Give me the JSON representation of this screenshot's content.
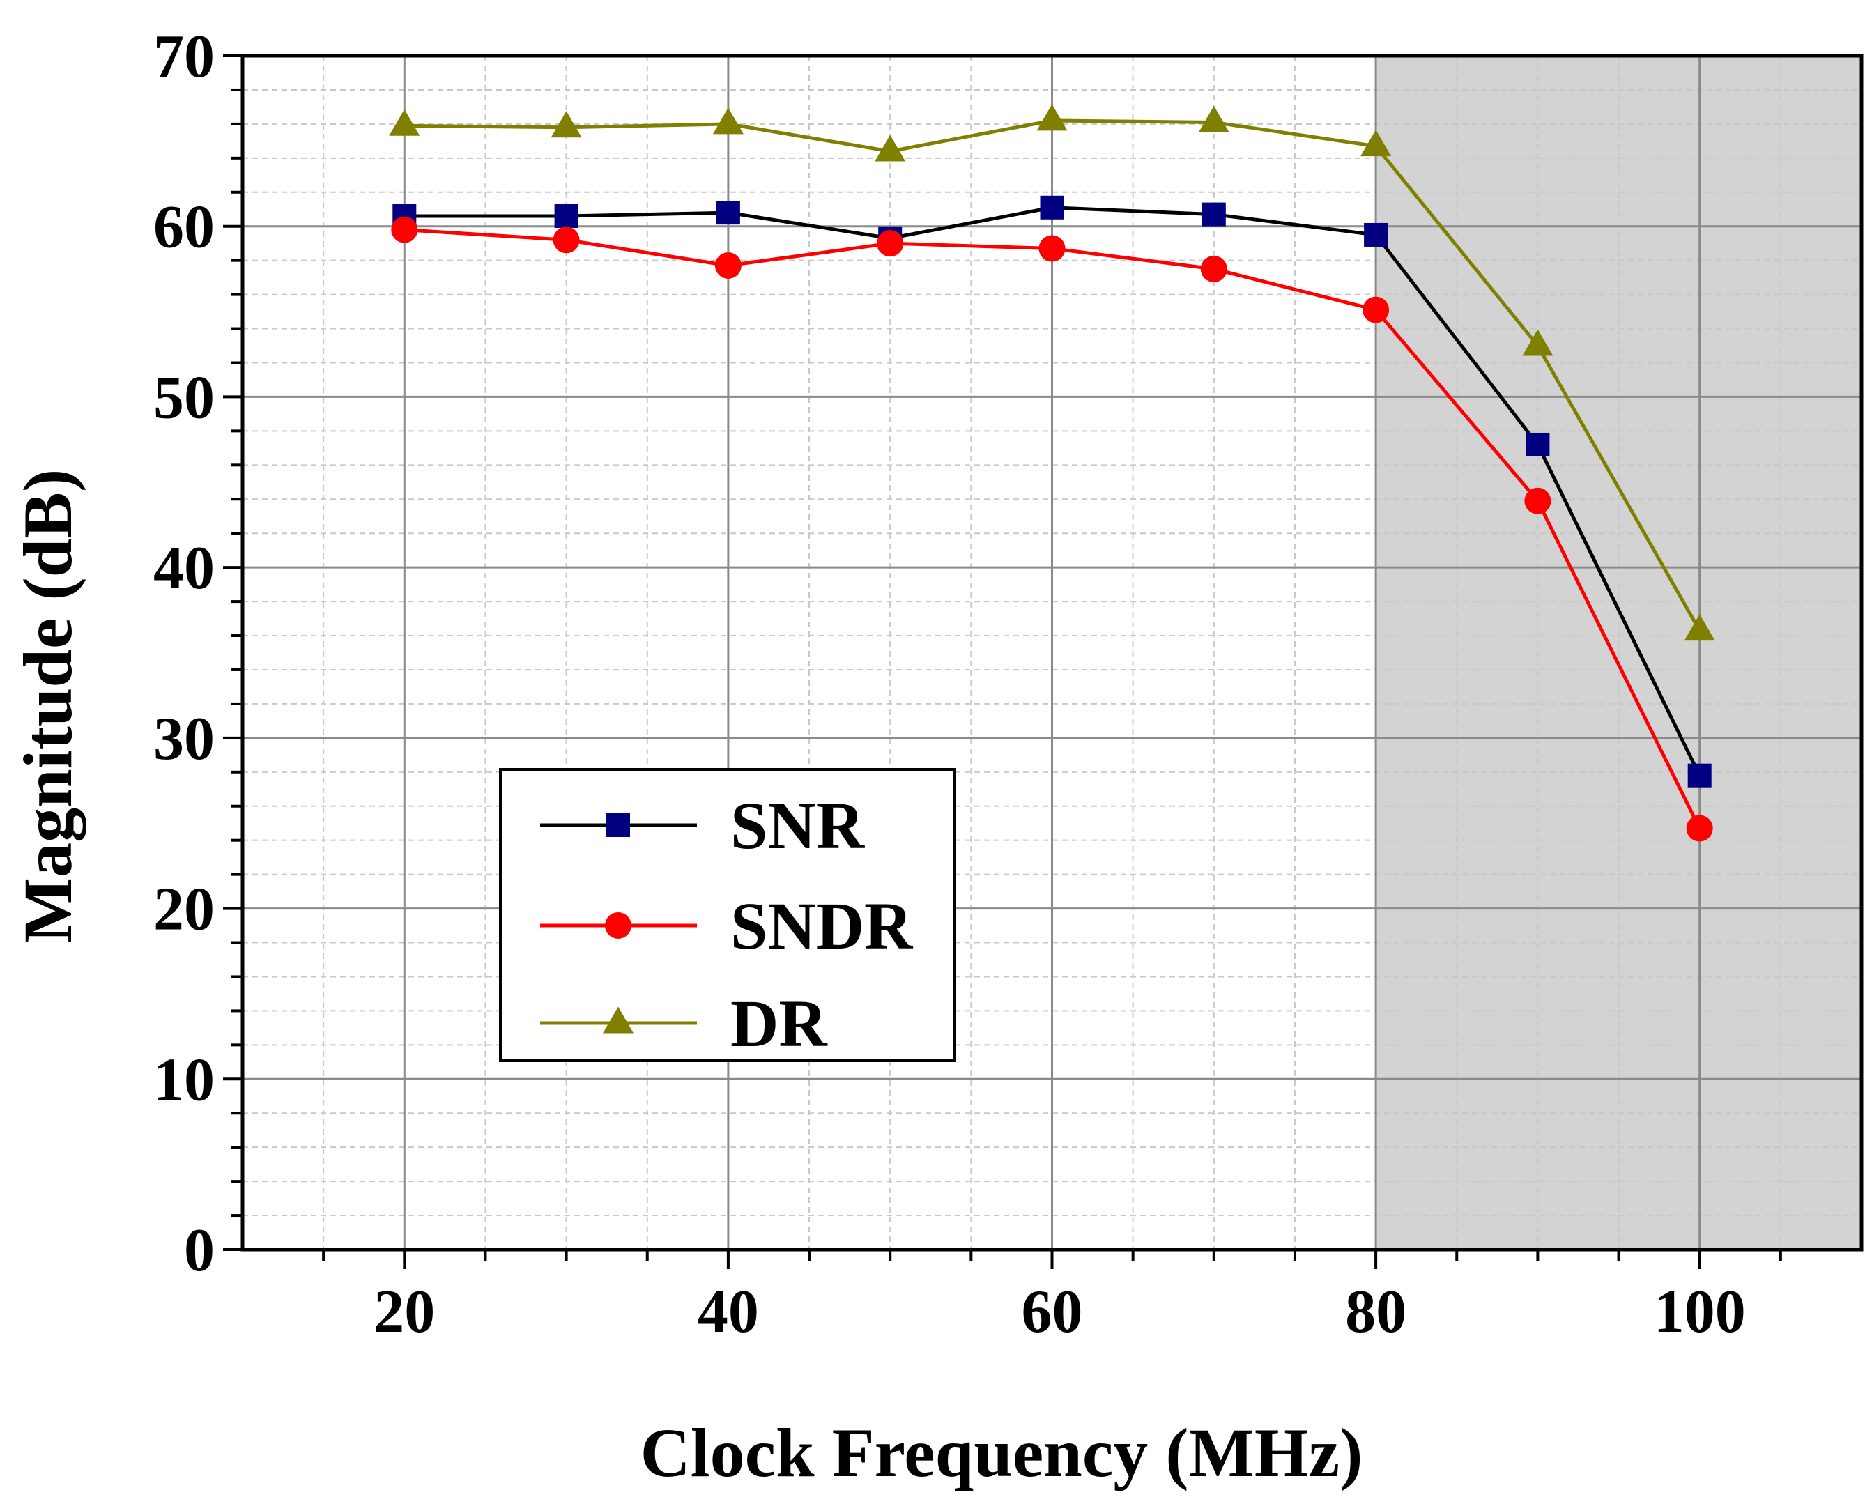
{
  "chart_data": {
    "type": "line",
    "title": "",
    "xlabel": "Clock Frequency (MHz)",
    "ylabel": "Magnitude (dB)",
    "xlim": [
      10,
      110
    ],
    "ylim": [
      0,
      70
    ],
    "xticks": [
      20,
      40,
      60,
      80,
      100
    ],
    "yticks": [
      0,
      10,
      20,
      30,
      40,
      50,
      60,
      70
    ],
    "x": [
      20,
      30,
      40,
      50,
      60,
      70,
      80,
      90,
      100
    ],
    "grid": true,
    "legend_position": "lower-left",
    "shaded_region": {
      "x_from": 80,
      "x_to": 110,
      "color": "#d3d3d3"
    },
    "series": [
      {
        "name": "SNR",
        "marker": "square",
        "line_color": "#000000",
        "marker_color": "#000080",
        "values": [
          60.6,
          60.6,
          60.8,
          59.3,
          61.1,
          60.7,
          59.5,
          47.2,
          27.8
        ]
      },
      {
        "name": "SNDR",
        "marker": "circle",
        "line_color": "#ff0000",
        "marker_color": "#ff0000",
        "values": [
          59.8,
          59.2,
          57.7,
          59.0,
          58.7,
          57.5,
          55.1,
          43.9,
          24.7
        ]
      },
      {
        "name": "DR",
        "marker": "triangle",
        "line_color": "#808000",
        "marker_color": "#808000",
        "values": [
          65.9,
          65.8,
          66.0,
          64.4,
          66.2,
          66.1,
          64.7,
          53.0,
          36.3
        ]
      }
    ]
  }
}
